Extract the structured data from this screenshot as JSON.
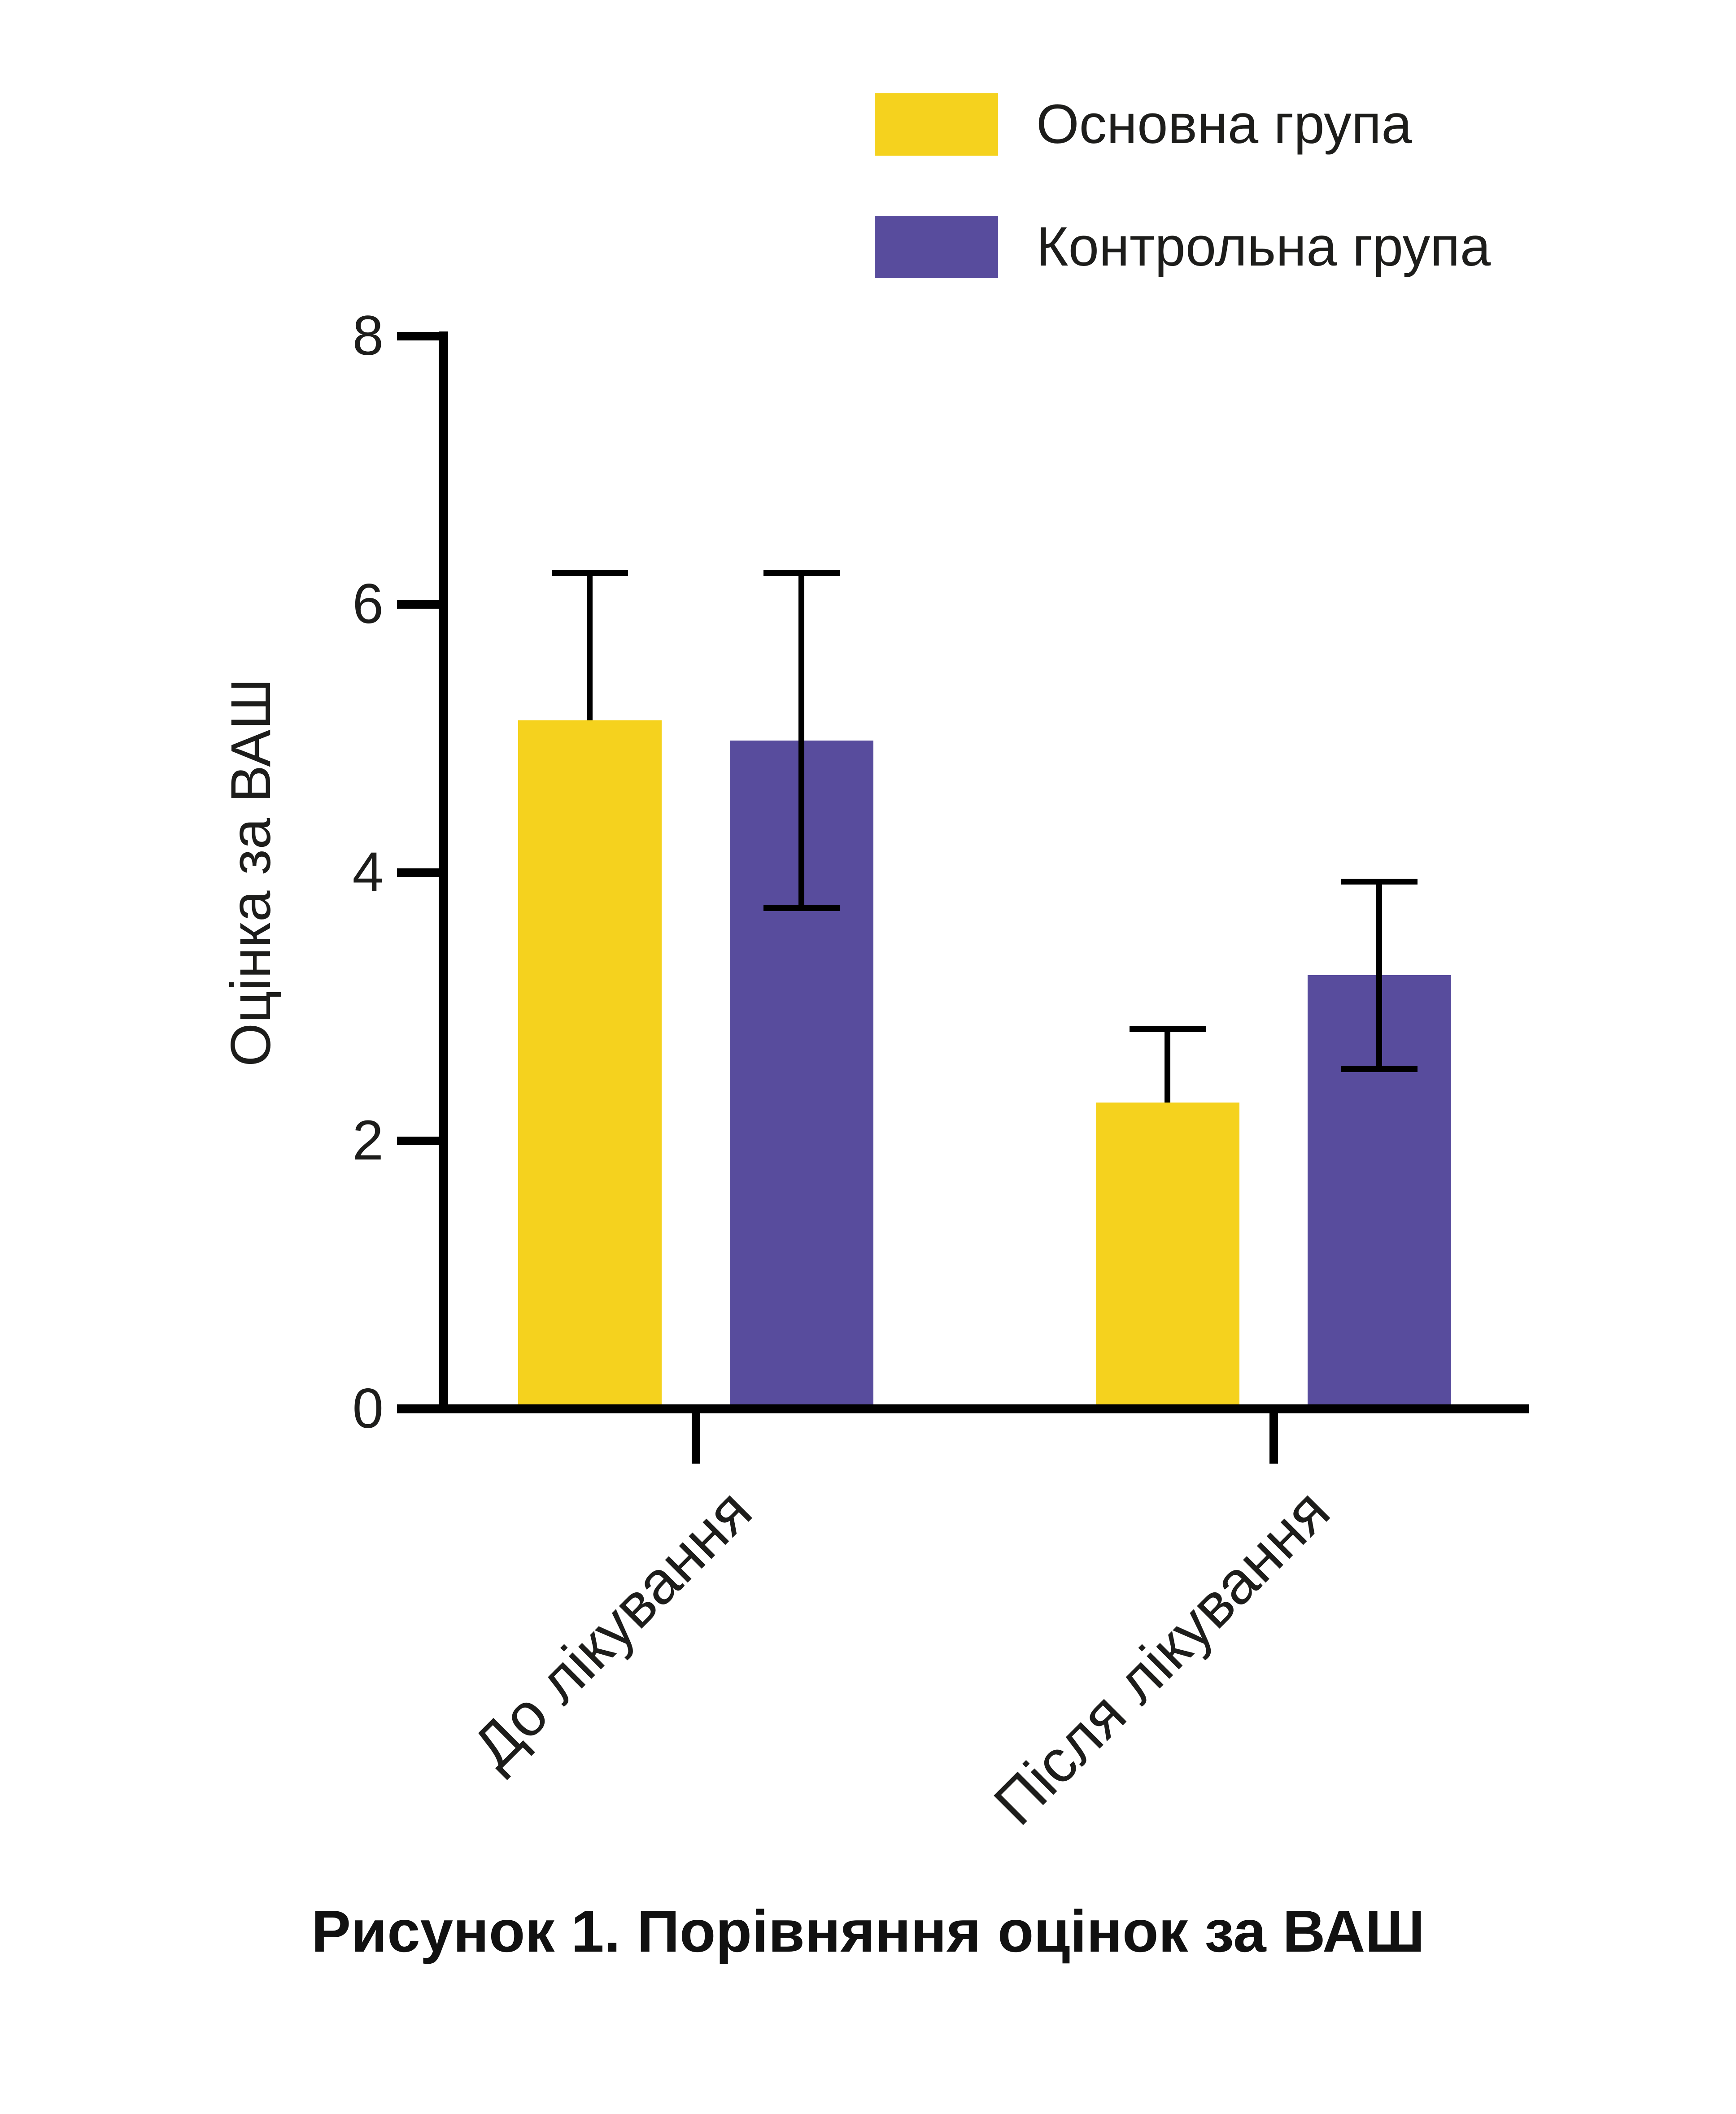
{
  "chart_data": {
    "type": "bar",
    "caption": "Рисунок 1. Порівняння оцінок за ВАШ",
    "ylabel": "Оцінка за ВАШ",
    "categories": [
      "До лікування",
      "Після лікування"
    ],
    "series": [
      {
        "name": "Основна група",
        "color": "#F5D21E",
        "values": [
          5.1,
          2.25
        ],
        "error_plus": [
          1.1,
          0.55
        ],
        "error_minus": [
          0,
          0
        ]
      },
      {
        "name": "Контрольна група",
        "color": "#584C9D",
        "values": [
          4.95,
          3.2
        ],
        "error_plus": [
          1.25,
          0.7
        ],
        "error_minus": [
          1.25,
          0.7
        ]
      }
    ],
    "ylim": [
      0,
      8
    ],
    "yticks": [
      0,
      2,
      4,
      6,
      8
    ],
    "grid": false,
    "legend_position": "top-right",
    "error_bar_style": {
      "main_group": "upper-whisker-only",
      "control_group": "both-whiskers"
    },
    "colors": {
      "axis": "#000000",
      "text": "#1D1D1B"
    }
  }
}
